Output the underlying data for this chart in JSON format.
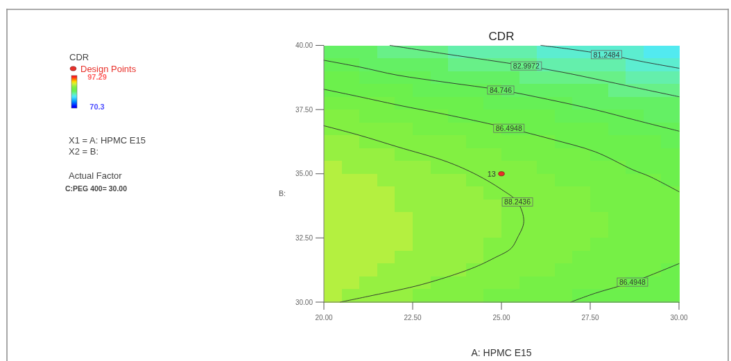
{
  "chart_data": {
    "type": "heatmap",
    "title": "CDR",
    "xlabel": "A: HPMC E15",
    "ylabel": "B:",
    "legend_title": "CDR",
    "legend": "left",
    "xlim": [
      20,
      30
    ],
    "xticks": [
      {
        "value": 20,
        "label": "20.00"
      },
      {
        "value": 22.5,
        "label": "22.50"
      },
      {
        "value": 25,
        "label": "25.00"
      },
      {
        "value": 27.5,
        "label": "27.50"
      },
      {
        "value": 30,
        "label": "30.00"
      }
    ],
    "ylim": [
      30,
      40
    ],
    "yticks": [
      {
        "value": 30,
        "label": "30.00"
      },
      {
        "value": 32.5,
        "label": "32.50"
      },
      {
        "value": 35,
        "label": "35.00"
      },
      {
        "value": 37.5,
        "label": "37.50"
      },
      {
        "value": 40,
        "label": "40.00"
      }
    ],
    "clim": [
      70.3,
      97.29
    ],
    "cticks": [
      70.3,
      97.29
    ],
    "cells": [
      [
        84,
        84,
        84,
        83,
        83,
        83,
        83,
        82,
        82,
        82,
        82,
        82,
        81,
        81,
        81,
        81,
        81,
        81,
        80,
        80
      ],
      [
        85,
        85,
        84,
        84,
        84,
        84,
        84,
        83,
        83,
        83,
        83,
        83,
        82,
        82,
        82,
        82,
        82,
        81,
        81,
        81
      ],
      [
        86,
        86,
        85,
        85,
        85,
        85,
        84,
        84,
        84,
        84,
        84,
        83,
        83,
        83,
        83,
        83,
        83,
        82,
        82,
        82
      ],
      [
        86,
        86,
        86,
        86,
        86,
        85,
        85,
        85,
        85,
        85,
        84,
        84,
        84,
        84,
        84,
        84,
        83,
        83,
        83,
        83
      ],
      [
        87,
        87,
        87,
        87,
        86,
        86,
        86,
        86,
        86,
        85,
        85,
        85,
        85,
        85,
        84,
        84,
        84,
        84,
        84,
        84
      ],
      [
        88,
        88,
        87,
        87,
        87,
        87,
        87,
        86,
        86,
        86,
        86,
        86,
        86,
        85,
        85,
        85,
        85,
        85,
        84,
        84
      ],
      [
        88,
        88,
        88,
        88,
        88,
        87,
        87,
        87,
        87,
        87,
        86,
        86,
        86,
        86,
        86,
        86,
        85,
        85,
        85,
        85
      ],
      [
        89,
        89,
        88,
        88,
        88,
        88,
        88,
        88,
        87,
        87,
        87,
        87,
        87,
        86,
        86,
        86,
        86,
        86,
        86,
        85
      ],
      [
        89,
        89,
        89,
        89,
        88,
        88,
        88,
        88,
        88,
        88,
        87,
        87,
        87,
        87,
        87,
        86,
        86,
        86,
        86,
        86
      ],
      [
        90,
        89,
        89,
        89,
        89,
        89,
        88,
        88,
        88,
        88,
        88,
        88,
        87,
        87,
        87,
        87,
        87,
        86,
        86,
        86
      ],
      [
        90,
        90,
        90,
        89,
        89,
        89,
        89,
        89,
        88,
        88,
        88,
        88,
        88,
        87,
        87,
        87,
        87,
        87,
        87,
        86
      ],
      [
        90,
        90,
        90,
        90,
        89,
        89,
        89,
        89,
        89,
        88,
        88,
        88,
        88,
        88,
        88,
        87,
        87,
        87,
        87,
        87
      ],
      [
        90,
        90,
        90,
        90,
        89,
        89,
        89,
        89,
        89,
        89,
        88,
        88,
        88,
        88,
        88,
        87,
        87,
        87,
        87,
        87
      ],
      [
        90,
        90,
        90,
        90,
        90,
        89,
        89,
        89,
        89,
        89,
        88,
        88,
        88,
        88,
        88,
        88,
        87,
        87,
        87,
        87
      ],
      [
        90,
        90,
        90,
        90,
        90,
        89,
        89,
        89,
        89,
        89,
        88,
        88,
        88,
        88,
        88,
        88,
        87,
        87,
        87,
        87
      ],
      [
        90,
        90,
        90,
        90,
        90,
        89,
        89,
        89,
        89,
        88,
        88,
        88,
        88,
        88,
        88,
        87,
        87,
        87,
        87,
        87
      ],
      [
        90,
        90,
        90,
        90,
        89,
        89,
        89,
        89,
        89,
        88,
        88,
        88,
        88,
        88,
        87,
        87,
        87,
        87,
        87,
        87
      ],
      [
        90,
        90,
        90,
        89,
        89,
        89,
        89,
        89,
        88,
        88,
        88,
        88,
        88,
        87,
        87,
        87,
        87,
        87,
        87,
        86
      ],
      [
        90,
        90,
        89,
        89,
        89,
        89,
        88,
        88,
        88,
        88,
        88,
        87,
        87,
        87,
        87,
        87,
        87,
        86,
        86,
        86
      ],
      [
        90,
        89,
        89,
        89,
        89,
        88,
        88,
        88,
        88,
        87,
        87,
        87,
        87,
        87,
        86,
        86,
        86,
        86,
        86,
        86
      ]
    ],
    "series": [
      {
        "type": "line",
        "color": "#2b2b2b",
        "x": [
          26.11,
          26.95,
          27.96,
          29.0,
          30
        ],
        "values": [
          40,
          39.85,
          39.64,
          39.36,
          39.11
        ]
      },
      {
        "type": "line",
        "color": "#2b2b2b",
        "x": [
          21.86,
          23.46,
          24.6,
          25.7,
          26.7,
          27.65,
          28.8,
          30
        ],
        "values": [
          40,
          39.66,
          39.43,
          39.2,
          38.96,
          38.69,
          38.35,
          38.0
        ]
      },
      {
        "type": "line",
        "color": "#2b2b2b",
        "x": [
          20,
          21.0,
          22.07,
          23.5,
          24.98,
          26.3,
          27.65,
          28.8,
          30
        ],
        "values": [
          39.42,
          39.16,
          38.84,
          38.55,
          38.26,
          37.9,
          37.49,
          37.08,
          36.66
        ]
      },
      {
        "type": "line",
        "color": "#2b2b2b",
        "x": [
          20,
          21.0,
          22.07,
          23.6,
          25.21,
          26.4,
          27.65,
          28.69,
          29.18,
          30
        ],
        "values": [
          38.29,
          38.0,
          37.68,
          37.26,
          36.77,
          36.35,
          35.85,
          35.16,
          34.89,
          34.3
        ]
      },
      {
        "type": "line",
        "color": "#2b2b2b",
        "x": [
          26.95,
          27.65,
          28.69,
          30
        ],
        "values": [
          30,
          30.35,
          30.78,
          31.5
        ]
      },
      {
        "type": "line",
        "color": "#2b2b2b",
        "x": [
          20,
          21.0,
          22.07,
          23.46,
          24.3,
          25.0,
          25.45,
          25.63,
          25.45,
          25.27,
          24.8,
          24.16,
          22.77,
          21.37,
          20.46
        ],
        "values": [
          36.87,
          36.5,
          36.05,
          35.47,
          34.96,
          34.39,
          33.9,
          33.14,
          32.5,
          32.09,
          31.72,
          31.31,
          30.69,
          30.26,
          30
        ]
      },
      {
        "type": "scatter",
        "name": "Design Points",
        "color": "#e8302a",
        "marker": "circle",
        "x": [
          25
        ],
        "values": [
          35
        ]
      }
    ],
    "annotations": [
      "X1 = A: HPMC E15",
      "X2 = B:",
      "Actual Factor",
      "C:PEG 400= 30.00",
      {
        "text": "81.2484",
        "x": 27.96,
        "y": 39.64
      },
      {
        "text": "82.9972",
        "x": 25.7,
        "y": 39.2
      },
      {
        "text": "84.746",
        "x": 24.98,
        "y": 38.26
      },
      {
        "text": "86.4948",
        "x": 25.21,
        "y": 36.77
      },
      {
        "text": "88.2436",
        "x": 25.45,
        "y": 33.9
      },
      {
        "text": "86.4948",
        "x": 28.69,
        "y": 30.78
      },
      {
        "text": "13",
        "x": 25,
        "y": 35
      }
    ]
  }
}
